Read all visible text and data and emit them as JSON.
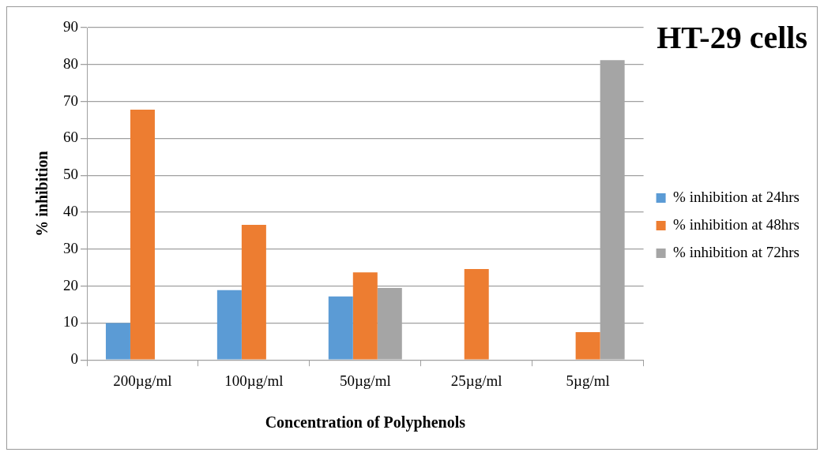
{
  "chart_data": {
    "type": "bar",
    "title": "HT-29 cells",
    "xlabel": "Concentration of Polyphenols",
    "ylabel": "% inhibition",
    "categories": [
      "200µg/ml",
      "100µg/ml",
      "50µg/ml",
      "25µg/ml",
      "5µg/ml"
    ],
    "series": [
      {
        "name": "% inhibition at 24hrs",
        "color": "#5b9bd5",
        "values": [
          10.0,
          18.9,
          17.2,
          null,
          null
        ]
      },
      {
        "name": "% inhibition at 48hrs",
        "color": "#ed7d31",
        "values": [
          67.8,
          36.6,
          23.7,
          24.6,
          7.5
        ]
      },
      {
        "name": "% inhibition at 72hrs",
        "color": "#a5a5a5",
        "values": [
          null,
          null,
          19.5,
          null,
          81.2
        ]
      }
    ],
    "ylim": [
      0,
      90
    ],
    "yticks": [
      0,
      10,
      20,
      30,
      40,
      50,
      60,
      70,
      80,
      90
    ],
    "grid": "y",
    "legend": "right"
  }
}
